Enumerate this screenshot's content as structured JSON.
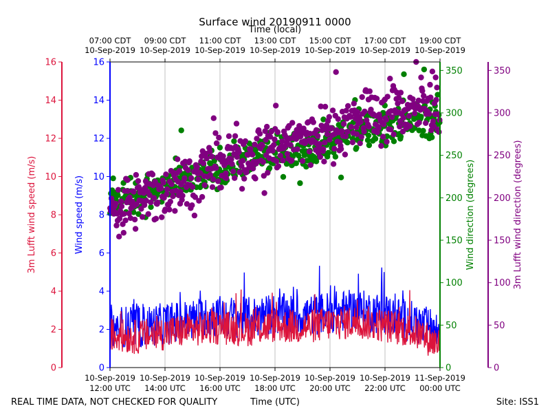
{
  "chart_data": {
    "type": "line+scatter",
    "title": "Surface wind 20190911 0000",
    "top_axis_label": "Time (local)",
    "top_ticks": [
      {
        "hour_utc": 12,
        "line1": "07:00 CDT",
        "line2": "10-Sep-2019"
      },
      {
        "hour_utc": 14,
        "line1": "09:00 CDT",
        "line2": "10-Sep-2019"
      },
      {
        "hour_utc": 16,
        "line1": "11:00 CDT",
        "line2": "10-Sep-2019"
      },
      {
        "hour_utc": 18,
        "line1": "13:00 CDT",
        "line2": "10-Sep-2019"
      },
      {
        "hour_utc": 20,
        "line1": "15:00 CDT",
        "line2": "10-Sep-2019"
      },
      {
        "hour_utc": 22,
        "line1": "17:00 CDT",
        "line2": "10-Sep-2019"
      },
      {
        "hour_utc": 24,
        "line1": "19:00 CDT",
        "line2": "10-Sep-2019"
      }
    ],
    "bottom_axis_label": "Time (UTC)",
    "bottom_ticks": [
      {
        "hour_utc": 12,
        "line1": "10-Sep-2019",
        "line2": "12:00 UTC"
      },
      {
        "hour_utc": 14,
        "line1": "10-Sep-2019",
        "line2": "14:00 UTC"
      },
      {
        "hour_utc": 16,
        "line1": "10-Sep-2019",
        "line2": "16:00 UTC"
      },
      {
        "hour_utc": 18,
        "line1": "10-Sep-2019",
        "line2": "18:00 UTC"
      },
      {
        "hour_utc": 20,
        "line1": "10-Sep-2019",
        "line2": "20:00 UTC"
      },
      {
        "hour_utc": 22,
        "line1": "10-Sep-2019",
        "line2": "22:00 UTC"
      },
      {
        "hour_utc": 24,
        "line1": "11-Sep-2019",
        "line2": "00:00 UTC"
      }
    ],
    "x_range_hours_utc": [
      12,
      24
    ],
    "grid": "vertical lines at tick positions",
    "axes": [
      {
        "id": "lufft_speed",
        "label": "3m Lufft wind speed (m/s)",
        "color": "#dc143c",
        "range": [
          0,
          16
        ],
        "ticks": [
          "0",
          "2",
          "4",
          "6",
          "8",
          "10",
          "12",
          "14",
          "16"
        ],
        "side": "left-outer"
      },
      {
        "id": "wind_speed",
        "label": "Wind speed (m/s)",
        "color": "#0000ff",
        "range": [
          0,
          16
        ],
        "ticks": [
          "0",
          "2",
          "4",
          "6",
          "8",
          "10",
          "12",
          "14",
          "16"
        ],
        "side": "left-inner"
      },
      {
        "id": "wind_dir",
        "label": "Wind direction (degrees)",
        "color": "#008000",
        "range": [
          0,
          360
        ],
        "ticks": [
          "0",
          "50",
          "100",
          "150",
          "200",
          "250",
          "300",
          "350"
        ],
        "side": "right-inner"
      },
      {
        "id": "lufft_dir",
        "label": "3m Lufft wind direction (degrees)",
        "color": "#800080",
        "range": [
          0,
          360
        ],
        "ticks": [
          "0",
          "50",
          "100",
          "150",
          "200",
          "250",
          "300",
          "350"
        ],
        "side": "right-outer"
      }
    ],
    "series": [
      {
        "name": "Wind speed",
        "axis": "wind_speed",
        "style": "line",
        "color": "#0000ff",
        "x_hours": [
          12.0,
          13.0,
          14.0,
          15.0,
          16.0,
          17.0,
          18.0,
          19.0,
          20.0,
          21.0,
          22.0,
          23.0,
          24.0
        ],
        "values": [
          2.2,
          2.1,
          2.3,
          2.5,
          2.7,
          2.6,
          2.8,
          2.7,
          2.9,
          3.0,
          2.8,
          2.4,
          1.8
        ],
        "noise_amp": 1.1
      },
      {
        "name": "3m Lufft wind speed",
        "axis": "lufft_speed",
        "style": "line",
        "color": "#dc143c",
        "x_hours": [
          12.0,
          13.0,
          14.0,
          15.0,
          16.0,
          17.0,
          18.0,
          19.0,
          20.0,
          21.0,
          22.0,
          23.0,
          24.0
        ],
        "values": [
          1.7,
          1.6,
          1.8,
          2.0,
          2.1,
          2.0,
          2.2,
          2.1,
          2.3,
          2.4,
          2.2,
          1.9,
          1.2
        ],
        "noise_amp": 0.9
      },
      {
        "name": "Wind direction",
        "axis": "wind_dir",
        "style": "scatter",
        "color": "#008000",
        "x_hours": [
          12.0,
          13.0,
          14.0,
          15.0,
          16.0,
          17.0,
          18.0,
          19.0,
          20.0,
          21.0,
          22.0,
          23.0,
          24.0
        ],
        "values": [
          195,
          200,
          212,
          222,
          235,
          245,
          252,
          258,
          268,
          278,
          288,
          292,
          295
        ],
        "noise_amp": 18
      },
      {
        "name": "3m Lufft wind direction",
        "axis": "lufft_dir",
        "style": "scatter",
        "color": "#800080",
        "x_hours": [
          12.0,
          13.0,
          14.0,
          15.0,
          16.0,
          17.0,
          18.0,
          19.0,
          20.0,
          21.0,
          22.0,
          23.0,
          24.0
        ],
        "values": [
          185,
          195,
          210,
          225,
          240,
          252,
          262,
          270,
          280,
          290,
          300,
          305,
          305
        ],
        "noise_amp": 28
      }
    ]
  },
  "footer": {
    "left_note": "REAL TIME DATA, NOT CHECKED FOR QUALITY",
    "site": "Site: ISS1"
  }
}
